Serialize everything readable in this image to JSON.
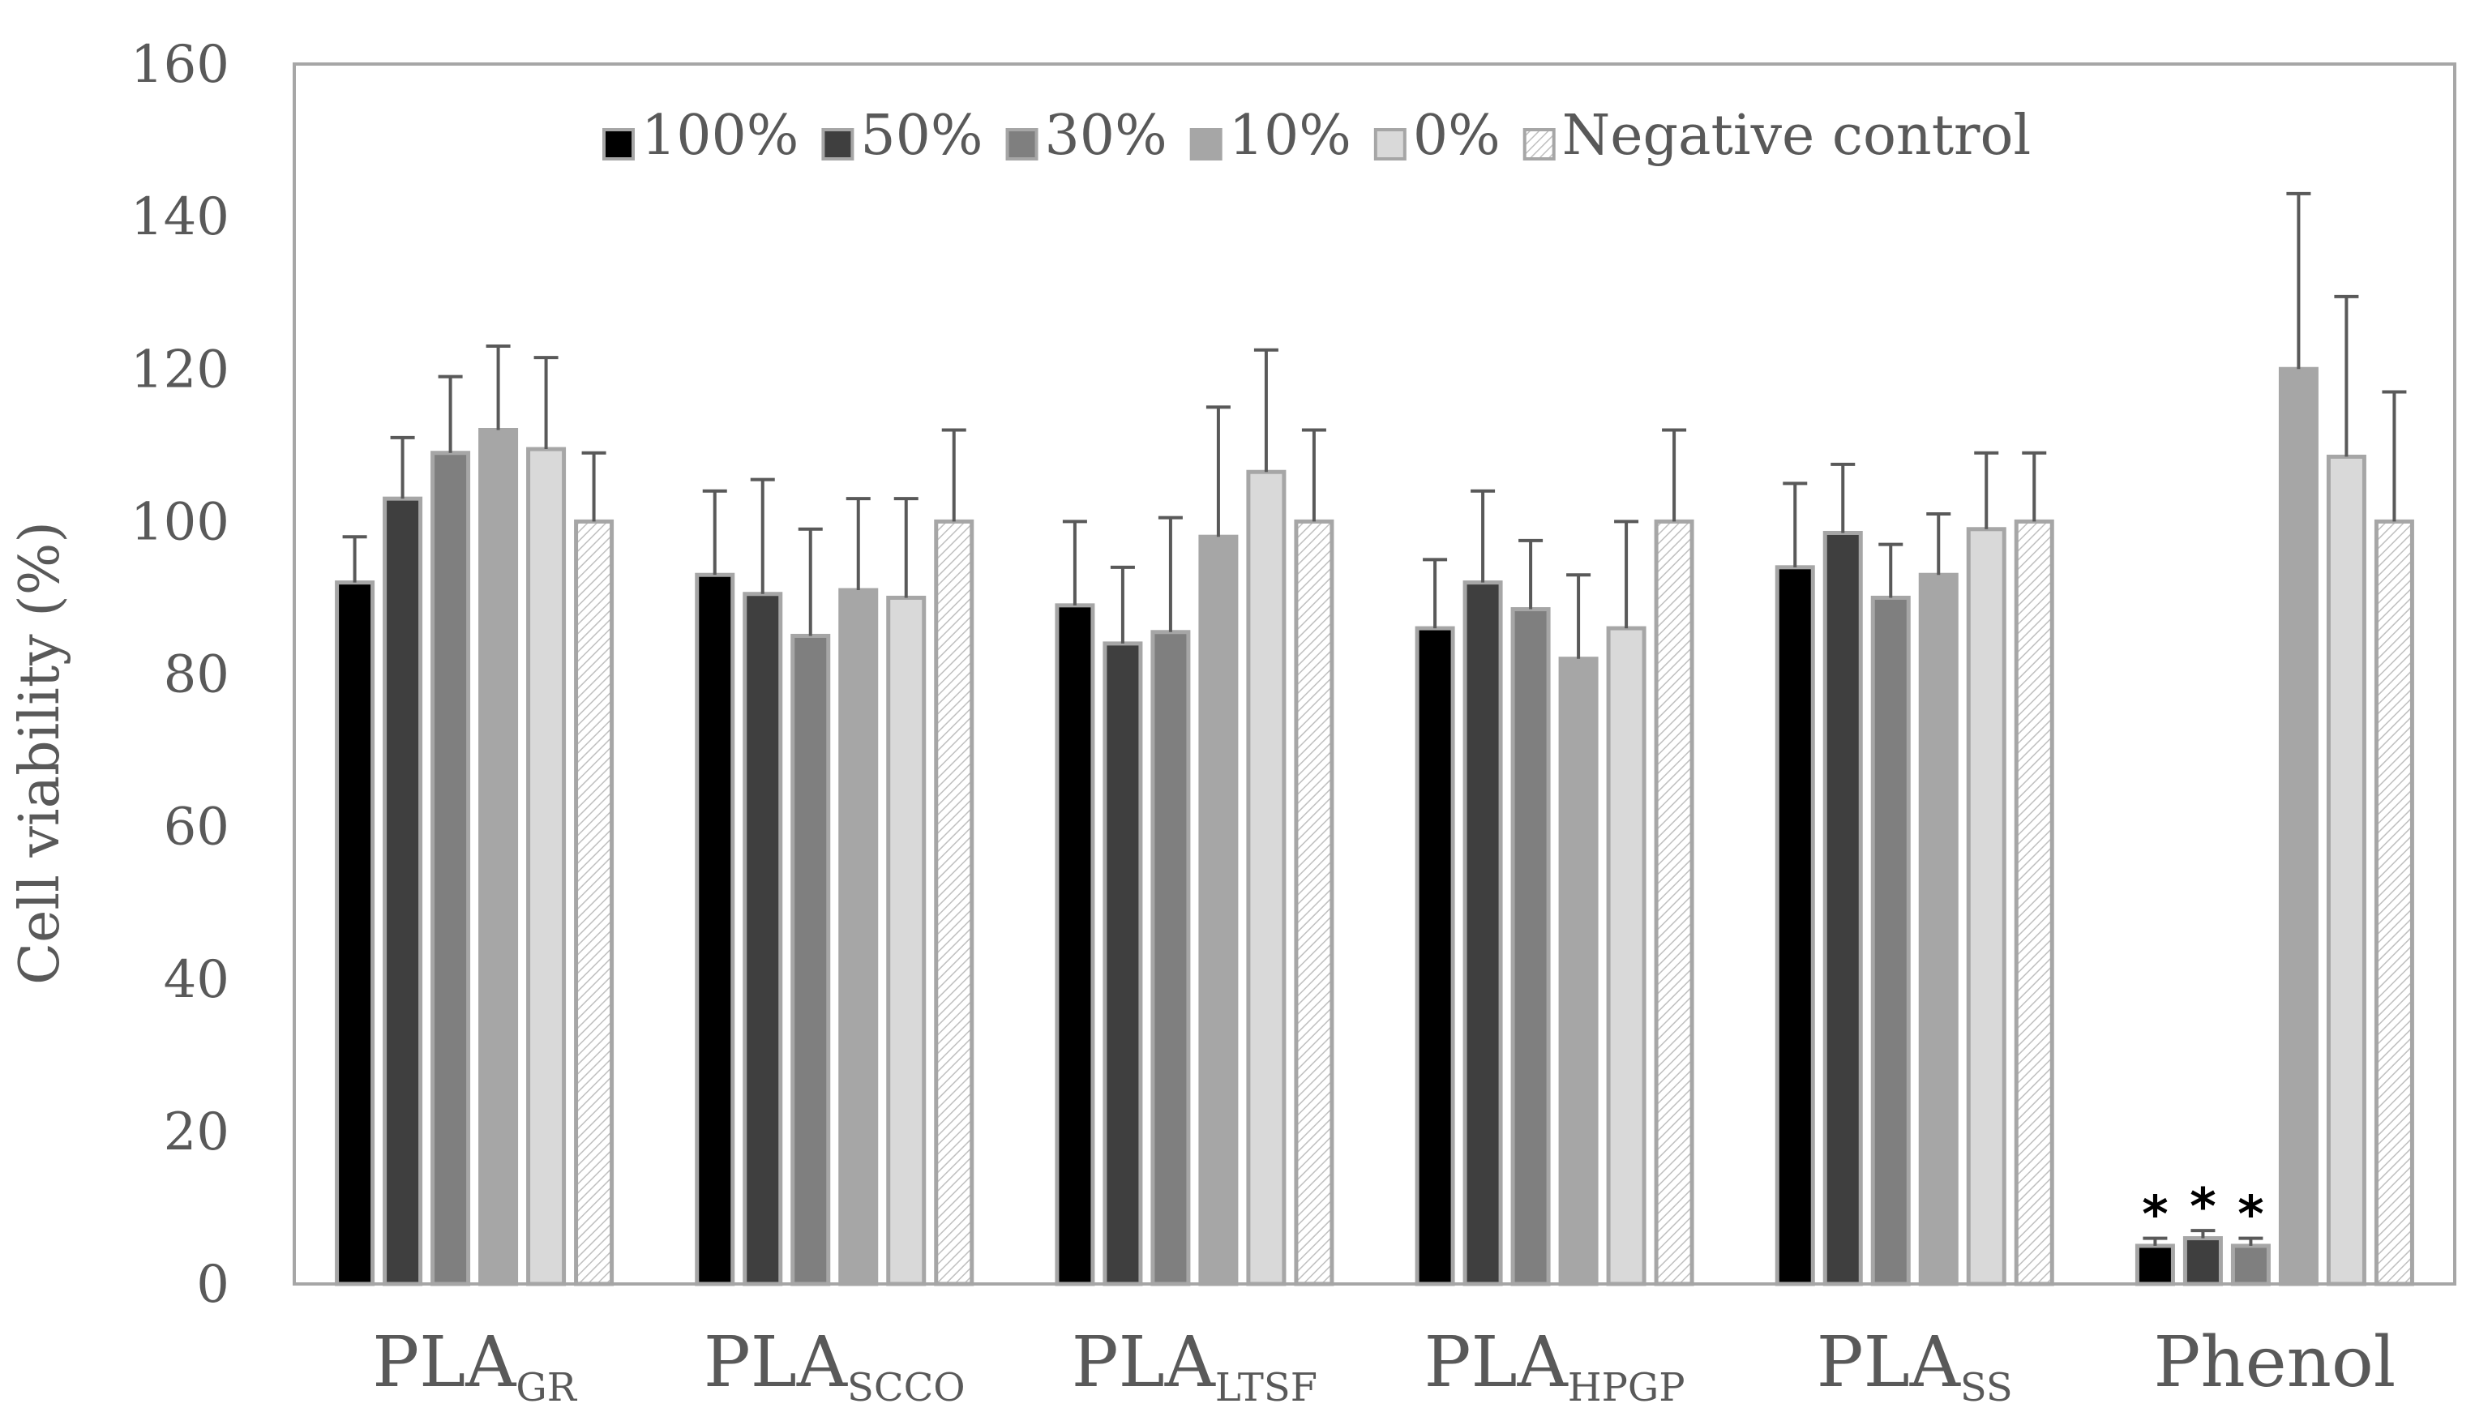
{
  "chart_data": {
    "type": "bar",
    "title": "",
    "xlabel": "",
    "ylabel": "Cell viability (%)",
    "ylim": [
      0,
      160
    ],
    "yticks": [
      "0",
      "20",
      "40",
      "60",
      "80",
      "100",
      "120",
      "140",
      "160"
    ],
    "categories": [
      {
        "base": "PLA",
        "sub": "GR"
      },
      {
        "base": "PLA",
        "sub": "SCCO"
      },
      {
        "base": "PLA",
        "sub": "LTSF"
      },
      {
        "base": "PLA",
        "sub": "HPGP"
      },
      {
        "base": "PLA",
        "sub": "SS"
      },
      {
        "base": "Phenol",
        "sub": ""
      }
    ],
    "legend_position": "top",
    "series": [
      {
        "name": "100%",
        "color": "#000000",
        "pattern": "solid",
        "values": [
          92,
          93,
          89,
          86,
          94,
          5
        ],
        "errors": [
          6,
          11,
          11,
          9,
          11,
          1
        ]
      },
      {
        "name": "50%",
        "color": "#3f3f3f",
        "pattern": "solid",
        "values": [
          103,
          90.5,
          84,
          92,
          98.5,
          6
        ],
        "errors": [
          8,
          15,
          10,
          12,
          9,
          1
        ]
      },
      {
        "name": "30%",
        "color": "#7f7f7f",
        "pattern": "solid",
        "values": [
          109,
          85,
          85.5,
          88.5,
          90,
          5
        ],
        "errors": [
          10,
          14,
          15,
          9,
          7,
          1
        ]
      },
      {
        "name": "10%",
        "color": "#a6a6a6",
        "pattern": "solid",
        "values": [
          112,
          91,
          98,
          82,
          93,
          120
        ],
        "errors": [
          11,
          12,
          17,
          11,
          8,
          23
        ]
      },
      {
        "name": "0%",
        "color": "#d9d9d9",
        "pattern": "solid",
        "values": [
          109.5,
          90,
          106.5,
          86,
          99,
          108.5
        ],
        "errors": [
          12,
          13,
          16,
          14,
          10,
          21
        ]
      },
      {
        "name": "Negative control",
        "color": "#ffffff",
        "pattern": "hatched",
        "values": [
          100,
          100,
          100,
          100,
          100,
          100
        ],
        "errors": [
          9,
          12,
          12,
          12,
          9,
          17
        ]
      }
    ],
    "annotations": [
      {
        "text": "*",
        "category": "Phenol",
        "series": "100%"
      },
      {
        "text": "*",
        "category": "Phenol",
        "series": "50%"
      },
      {
        "text": "*",
        "category": "Phenol",
        "series": "30%"
      }
    ]
  }
}
